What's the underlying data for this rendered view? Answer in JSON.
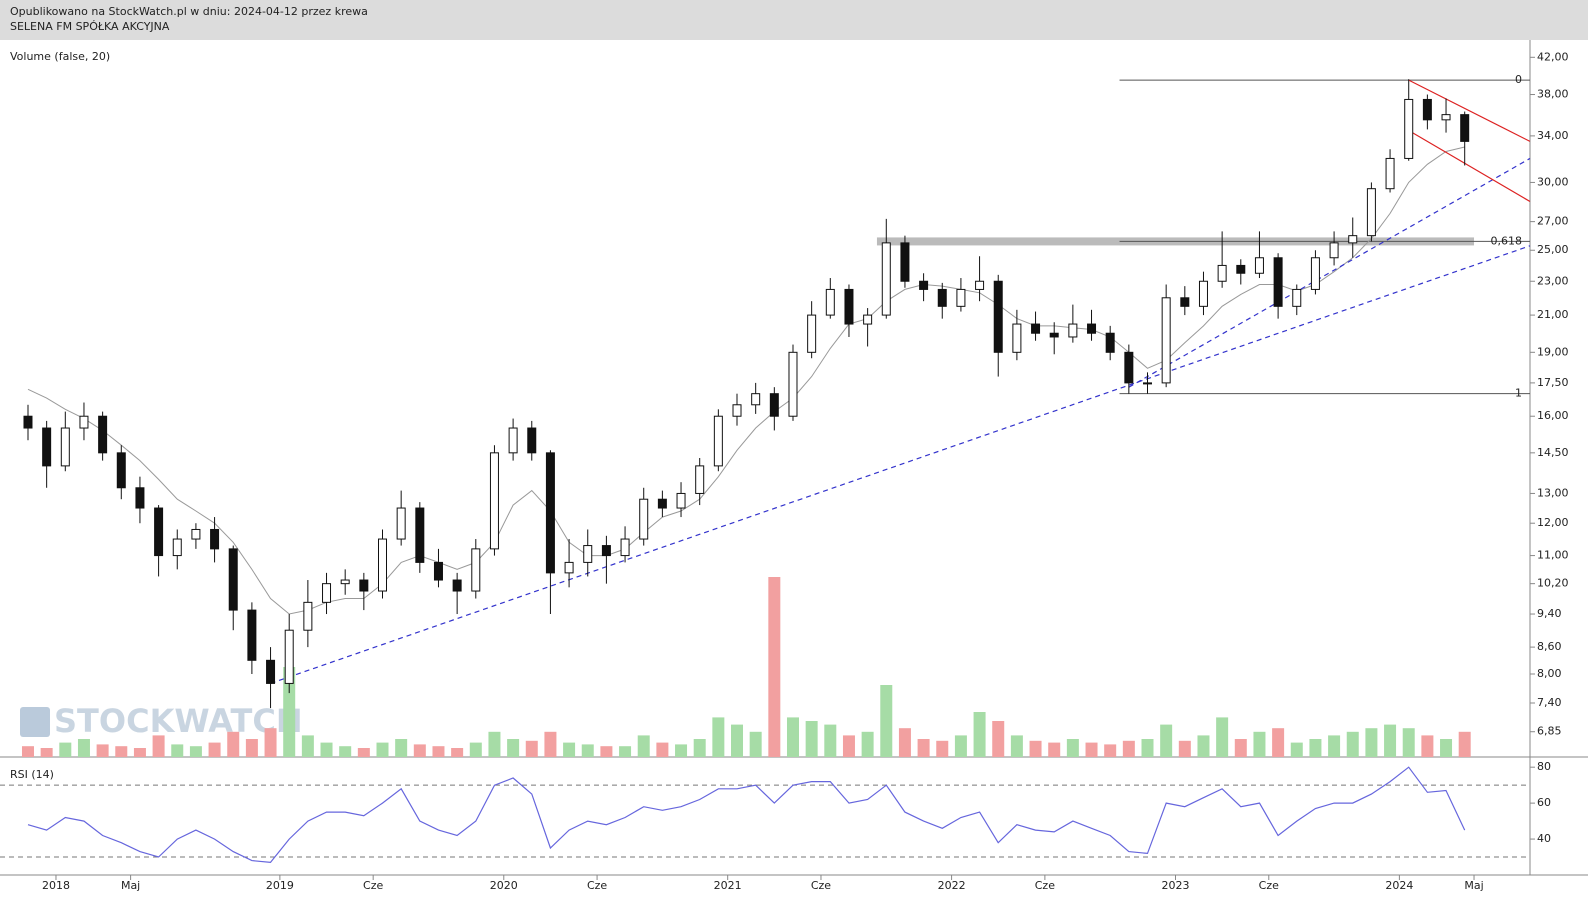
{
  "header": {
    "line1": "Opublikowano na StockWatch.pl w dniu: 2024-04-12 przez krewa",
    "line2": "SELENA FM SPÓŁKA AKCYJNA"
  },
  "watermark": "STOCKWATCH",
  "chart_data": [
    {
      "type": "candlestick",
      "title": "Volume (false, 20)",
      "log_scale": true,
      "x": [
        "2017-11",
        "2017-12",
        "2018-01",
        "2018-02",
        "2018-03",
        "2018-04",
        "2018-05",
        "2018-06",
        "2018-07",
        "2018-08",
        "2018-09",
        "2018-10",
        "2018-11",
        "2018-12",
        "2019-01",
        "2019-02",
        "2019-03",
        "2019-04",
        "2019-05",
        "2019-06",
        "2019-07",
        "2019-08",
        "2019-09",
        "2019-10",
        "2019-11",
        "2019-12",
        "2020-01",
        "2020-02",
        "2020-03",
        "2020-04",
        "2020-05",
        "2020-06",
        "2020-07",
        "2020-08",
        "2020-09",
        "2020-10",
        "2020-11",
        "2020-12",
        "2021-01",
        "2021-02",
        "2021-03",
        "2021-04",
        "2021-05",
        "2021-06",
        "2021-07",
        "2021-08",
        "2021-09",
        "2021-10",
        "2021-11",
        "2021-12",
        "2022-01",
        "2022-02",
        "2022-03",
        "2022-04",
        "2022-05",
        "2022-06",
        "2022-07",
        "2022-08",
        "2022-09",
        "2022-10",
        "2022-11",
        "2022-12",
        "2023-01",
        "2023-02",
        "2023-03",
        "2023-04",
        "2023-05",
        "2023-06",
        "2023-07",
        "2023-08",
        "2023-09",
        "2023-10",
        "2023-11",
        "2023-12",
        "2024-01",
        "2024-02",
        "2024-03",
        "2024-04"
      ],
      "open": [
        16,
        15.5,
        14,
        15.5,
        16,
        14.5,
        13.2,
        12.5,
        11,
        11.5,
        11.8,
        11.2,
        9.5,
        8.3,
        7.8,
        9,
        9.7,
        10.2,
        10.3,
        10,
        11.5,
        12.5,
        10.8,
        10.3,
        10,
        11.2,
        14.5,
        15.5,
        14.5,
        10.5,
        10.8,
        11.3,
        11,
        11.5,
        12.8,
        12.5,
        13,
        14,
        16,
        16.5,
        17,
        16,
        19,
        21,
        22.5,
        20.5,
        21,
        25.5,
        23,
        22.5,
        21.5,
        22.5,
        23,
        19,
        20.5,
        20,
        19.8,
        20.5,
        20,
        19,
        17.5,
        17.5,
        22,
        21.5,
        23,
        24,
        23.5,
        24.5,
        21.5,
        22.5,
        24.5,
        25.5,
        26,
        29.5,
        32,
        37.5,
        35.5,
        36
      ],
      "high": [
        16.5,
        15.8,
        16.2,
        16.6,
        16.2,
        14.8,
        13.6,
        12.6,
        11.8,
        12,
        12.2,
        11.3,
        9.7,
        8.6,
        9.4,
        10.3,
        10.5,
        10.6,
        10.5,
        11.8,
        13.1,
        12.7,
        11.2,
        10.5,
        11.5,
        14.8,
        15.9,
        15.8,
        14.6,
        11.5,
        11.8,
        11.6,
        11.9,
        13.2,
        13.1,
        13.4,
        14.3,
        16.3,
        17,
        17.5,
        17.3,
        19.4,
        21.8,
        23.2,
        22.8,
        21.4,
        27.2,
        26,
        23.5,
        22.9,
        23.2,
        24.6,
        23.4,
        21.3,
        21.2,
        20.6,
        21.6,
        21.3,
        20.4,
        19.4,
        18,
        22.8,
        22.7,
        23.6,
        26.3,
        24.4,
        26.3,
        24.8,
        22.8,
        25,
        26.3,
        27.3,
        30,
        32.8,
        39.6,
        38,
        37.6,
        36.3
      ],
      "low": [
        15,
        13.2,
        13.8,
        15,
        14.2,
        12.8,
        12,
        10.4,
        10.6,
        11.2,
        10.8,
        9,
        8,
        7.3,
        7.6,
        8.6,
        9.4,
        9.9,
        9.5,
        9.8,
        11.3,
        10.5,
        10.1,
        9.4,
        9.8,
        11,
        14.2,
        14.2,
        9.4,
        10.1,
        10.4,
        10.2,
        10.8,
        11.3,
        12.2,
        12.2,
        12.6,
        13.8,
        15.6,
        16.1,
        15.4,
        15.8,
        18.7,
        20.8,
        19.8,
        19.3,
        20.8,
        22.6,
        21.8,
        20.8,
        21.2,
        21.8,
        17.8,
        18.6,
        19.6,
        18.9,
        19.5,
        19.6,
        18.6,
        17,
        17,
        17.3,
        21,
        21,
        22.6,
        22.8,
        23.2,
        20.8,
        21,
        22.2,
        24,
        24.5,
        25.6,
        29.2,
        31.8,
        34.6,
        34.3,
        31.4
      ],
      "close": [
        15.5,
        14,
        15.5,
        16,
        14.5,
        13.2,
        12.5,
        11,
        11.5,
        11.8,
        11.2,
        9.5,
        8.3,
        7.8,
        9,
        9.7,
        10.2,
        10.3,
        10,
        11.5,
        12.5,
        10.8,
        10.3,
        10,
        11.2,
        14.5,
        15.5,
        14.5,
        10.5,
        10.8,
        11.3,
        11,
        11.5,
        12.8,
        12.5,
        13,
        14,
        16,
        16.5,
        17,
        16,
        19,
        21,
        22.5,
        20.5,
        21,
        25.5,
        23,
        22.5,
        21.5,
        22.5,
        23,
        19,
        20.5,
        20,
        19.8,
        20.5,
        20,
        19,
        17.5,
        17.5,
        22,
        21.5,
        23,
        24,
        23.5,
        24.5,
        21.5,
        22.5,
        24.5,
        25.5,
        26,
        29.5,
        32,
        37.5,
        35.5,
        36,
        33.5
      ],
      "volume": [
        6,
        5,
        8,
        10,
        7,
        6,
        5,
        12,
        7,
        6,
        8,
        14,
        10,
        16,
        50,
        12,
        8,
        6,
        5,
        8,
        10,
        7,
        6,
        5,
        8,
        14,
        10,
        9,
        14,
        8,
        7,
        6,
        6,
        12,
        8,
        7,
        10,
        22,
        18,
        14,
        100,
        22,
        20,
        18,
        12,
        14,
        40,
        16,
        10,
        9,
        12,
        25,
        20,
        12,
        9,
        8,
        10,
        8,
        7,
        9,
        10,
        18,
        9,
        12,
        22,
        10,
        14,
        16,
        8,
        10,
        12,
        14,
        16,
        18,
        16,
        12,
        10,
        14
      ],
      "ma": [
        17.2,
        16.8,
        16.3,
        15.9,
        15.4,
        14.8,
        14.2,
        13.5,
        12.8,
        12.4,
        12,
        11.4,
        10.6,
        9.8,
        9.4,
        9.5,
        9.7,
        9.8,
        9.8,
        10.2,
        10.8,
        11,
        10.8,
        10.6,
        10.8,
        11.4,
        12.6,
        13.1,
        12.4,
        11.4,
        11,
        11,
        11.2,
        11.7,
        12.2,
        12.4,
        12.8,
        13.6,
        14.6,
        15.5,
        16.2,
        16.8,
        17.8,
        19.2,
        20.5,
        20.8,
        21.8,
        22.5,
        22.8,
        22.7,
        22.5,
        22.3,
        21.6,
        20.8,
        20.4,
        20.4,
        20.3,
        20.2,
        19.8,
        19,
        18.2,
        18.6,
        19.5,
        20.4,
        21.5,
        22.2,
        22.8,
        22.8,
        22.4,
        22.8,
        23.6,
        24.5,
        25.8,
        27.6,
        30,
        31.5,
        32.6,
        33
      ],
      "ma_color": "#999999",
      "up_color": "#a6dca6",
      "down_color": "#f2a0a0",
      "xlim": [
        "2017-10",
        "2024-08"
      ],
      "ylim": [
        6.4,
        44
      ],
      "yticks": [
        {
          "value": 42,
          "label": "42,00"
        },
        {
          "value": 38,
          "label": "38,00"
        },
        {
          "value": 34,
          "label": "34,00"
        },
        {
          "value": 30,
          "label": "30,00"
        },
        {
          "value": 27,
          "label": "27,00"
        },
        {
          "value": 25,
          "label": "25,00"
        },
        {
          "value": 23,
          "label": "23,00"
        },
        {
          "value": 21,
          "label": "21,00"
        },
        {
          "value": 19,
          "label": "19,00"
        },
        {
          "value": 17.5,
          "label": "17,50"
        },
        {
          "value": 16,
          "label": "16,00"
        },
        {
          "value": 14.5,
          "label": "14,50"
        },
        {
          "value": 13,
          "label": "13,00"
        },
        {
          "value": 12,
          "label": "12,00"
        },
        {
          "value": 11,
          "label": "11,00"
        },
        {
          "value": 10.2,
          "label": "10,20"
        },
        {
          "value": 9.4,
          "label": "9,40"
        },
        {
          "value": 8.6,
          "label": "8,60"
        },
        {
          "value": 8,
          "label": "8,00"
        },
        {
          "value": 7.4,
          "label": "7,40"
        },
        {
          "value": 6.85,
          "label": "6,85"
        }
      ],
      "trendlines": [
        {
          "from": [
            "2018-12",
            7.8
          ],
          "to": [
            "2024-08",
            25.3
          ],
          "color": "#3333cc"
        },
        {
          "from": [
            "2022-10",
            17.3
          ],
          "to": [
            "2024-08",
            32
          ],
          "color": "#3333cc"
        },
        {
          "from": [
            "2024-01",
            39.5
          ],
          "to": [
            "2024-08",
            33.5
          ],
          "color": "#dd2222"
        },
        {
          "from": [
            "2024-01",
            34.5
          ],
          "to": [
            "2024-08",
            28.5
          ],
          "color": "#dd2222"
        }
      ],
      "fib": {
        "from": "2022-10",
        "to": "2024-08",
        "levels": [
          {
            "label": "0",
            "value": 39.5
          },
          {
            "label": "0,618",
            "value": 25.6
          },
          {
            "label": "1",
            "value": 17
          }
        ],
        "band": {
          "value": 25.6,
          "from": "2021-09",
          "to": "2024-05"
        }
      }
    },
    {
      "type": "line",
      "title": "RSI (14)",
      "color": "#6666dd",
      "values": [
        48,
        45,
        52,
        50,
        42,
        38,
        33,
        30,
        40,
        45,
        40,
        33,
        28,
        27,
        40,
        50,
        55,
        55,
        53,
        60,
        68,
        50,
        45,
        42,
        50,
        70,
        74,
        65,
        35,
        45,
        50,
        48,
        52,
        58,
        56,
        58,
        62,
        68,
        68,
        70,
        60,
        70,
        72,
        72,
        60,
        62,
        70,
        55,
        50,
        46,
        52,
        55,
        38,
        48,
        45,
        44,
        50,
        46,
        42,
        33,
        32,
        60,
        58,
        63,
        68,
        58,
        60,
        42,
        50,
        57,
        60,
        60,
        65,
        72,
        80,
        66,
        67,
        45
      ],
      "ylim": [
        20,
        84
      ],
      "yticks": [
        80,
        60,
        40
      ],
      "levels": [
        70,
        30
      ]
    }
  ],
  "xticks": [
    {
      "value": "2018-01",
      "label": "2018"
    },
    {
      "value": "2018-05",
      "label": "Maj"
    },
    {
      "value": "2019-01",
      "label": "2019"
    },
    {
      "value": "2019-06",
      "label": "Cze"
    },
    {
      "value": "2020-01",
      "label": "2020"
    },
    {
      "value": "2020-06",
      "label": "Cze"
    },
    {
      "value": "2021-01",
      "label": "2021"
    },
    {
      "value": "2021-06",
      "label": "Cze"
    },
    {
      "value": "2022-01",
      "label": "2022"
    },
    {
      "value": "2022-06",
      "label": "Cze"
    },
    {
      "value": "2023-01",
      "label": "2023"
    },
    {
      "value": "2023-06",
      "label": "Cze"
    },
    {
      "value": "2024-01",
      "label": "2024"
    },
    {
      "value": "2024-05",
      "label": "Maj"
    }
  ]
}
